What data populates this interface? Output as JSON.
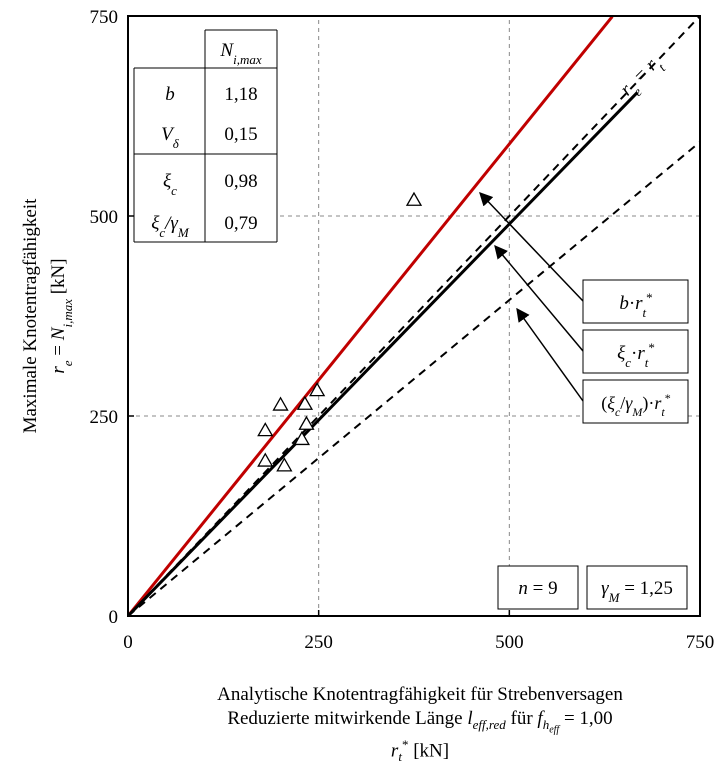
{
  "chart_data": {
    "type": "scatter",
    "xlim": [
      0,
      750
    ],
    "ylim": [
      0,
      750
    ],
    "x_ticks": [
      "0",
      "250",
      "500",
      "750"
    ],
    "y_ticks": [
      "0",
      "250",
      "500",
      "750"
    ],
    "grid": true,
    "ylabel_line1": "Maximale Knotentragfähigkeit",
    "ylabel_line2": "r",
    "ylabel_line2_sub": "e",
    "ylabel_line2_rest": " = N",
    "ylabel_line2_sub2": "i,max",
    "ylabel_line2_unit": " [kN]",
    "xlabel_line1": "Analytische Knotentragfähigkeit für Strebenversagen",
    "xlabel_line2": "Reduzierte mitwirkende Länge l_eff,red für f_h_eff = 1,00",
    "xlabel_line3": "r_t* [kN]",
    "points": [
      {
        "x": 180,
        "y": 232
      },
      {
        "x": 180,
        "y": 194
      },
      {
        "x": 200,
        "y": 264
      },
      {
        "x": 205,
        "y": 188
      },
      {
        "x": 228,
        "y": 221
      },
      {
        "x": 232,
        "y": 265
      },
      {
        "x": 234,
        "y": 240
      },
      {
        "x": 248,
        "y": 282
      },
      {
        "x": 375,
        "y": 520
      }
    ],
    "lines": [
      {
        "name": "b·r_t*",
        "slope": 1.18,
        "x_end": 635,
        "color": "#c00000",
        "style": "solid"
      },
      {
        "name": "ξc·r_t*",
        "slope": 0.98,
        "x_end": 668,
        "color": "#000000",
        "style": "solid"
      },
      {
        "name": "(ξc/γM)·r_t*",
        "slope": 0.79,
        "x_end": 750,
        "color": "#000000",
        "style": "dashed"
      },
      {
        "name": "r_e = r_t",
        "slope": 1.0,
        "x_end": 750,
        "color": "#000000",
        "style": "dashed"
      }
    ],
    "line_labels": {
      "bisector": "r_e = r_t",
      "b": "b·r_t*",
      "xi": "ξc·r_t*",
      "xi_gamma": "(ξc/γM)·r_t*"
    },
    "table": {
      "header": "N_i,max",
      "rows": [
        {
          "label": "b",
          "value": "1,18"
        },
        {
          "label": "V_δ",
          "value": "0,15"
        },
        {
          "label": "ξc",
          "value": "0,98"
        },
        {
          "label": "ξc/γM",
          "value": "0,79"
        }
      ]
    },
    "n_label": "n = 9",
    "gamma_label": "γM = 1,25"
  }
}
